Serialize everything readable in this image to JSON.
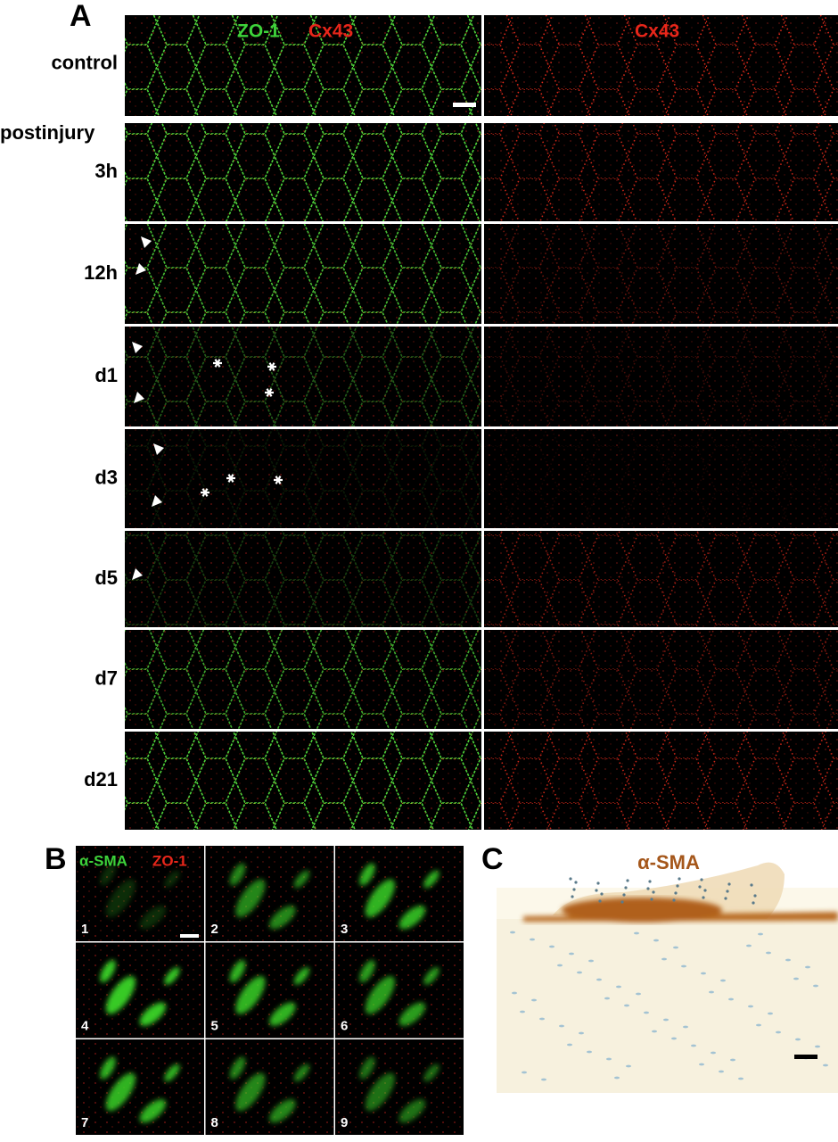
{
  "panel_a": {
    "label": "A",
    "headers": [
      "ZO-1",
      "Cx43",
      "Cx43"
    ],
    "group_label": "postinjury",
    "rows": [
      "control",
      "3h",
      "12h",
      "d1",
      "d3",
      "d5",
      "d7",
      "d21"
    ]
  },
  "panel_b": {
    "label": "B",
    "legend": [
      "α-SMA",
      "ZO-1"
    ],
    "cells": [
      "1",
      "2",
      "3",
      "4",
      "5",
      "6",
      "7",
      "8",
      "9"
    ]
  },
  "panel_c": {
    "label": "C",
    "title": "α-SMA"
  }
}
